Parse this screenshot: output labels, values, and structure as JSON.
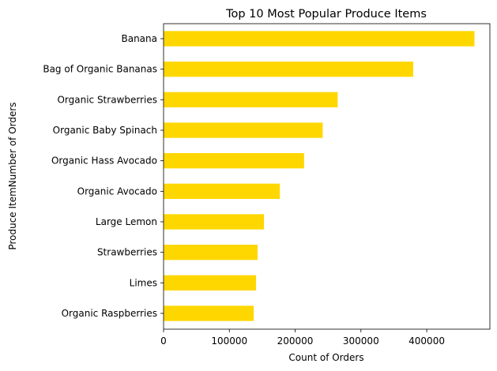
{
  "chart_data": {
    "type": "bar",
    "orientation": "horizontal",
    "title": "Top 10 Most Popular Produce Items",
    "xlabel": "Count of Orders",
    "ylabel": "Produce ItemNumber of Orders",
    "categories": [
      "Banana",
      "Bag of Organic Bananas",
      "Organic Strawberries",
      "Organic Baby Spinach",
      "Organic Hass Avocado",
      "Organic Avocado",
      "Large Lemon",
      "Strawberries",
      "Limes",
      "Organic Raspberries"
    ],
    "values": [
      472565,
      379450,
      264683,
      241921,
      213584,
      176815,
      152657,
      142951,
      140627,
      137057
    ],
    "xlim": [
      0,
      496000
    ],
    "xticks": [
      0,
      100000,
      200000,
      300000,
      400000
    ],
    "xtick_labels": [
      "0",
      "100000",
      "200000",
      "300000",
      "400000"
    ],
    "bar_color": "#FFD700",
    "grid": false,
    "legend": "none"
  }
}
